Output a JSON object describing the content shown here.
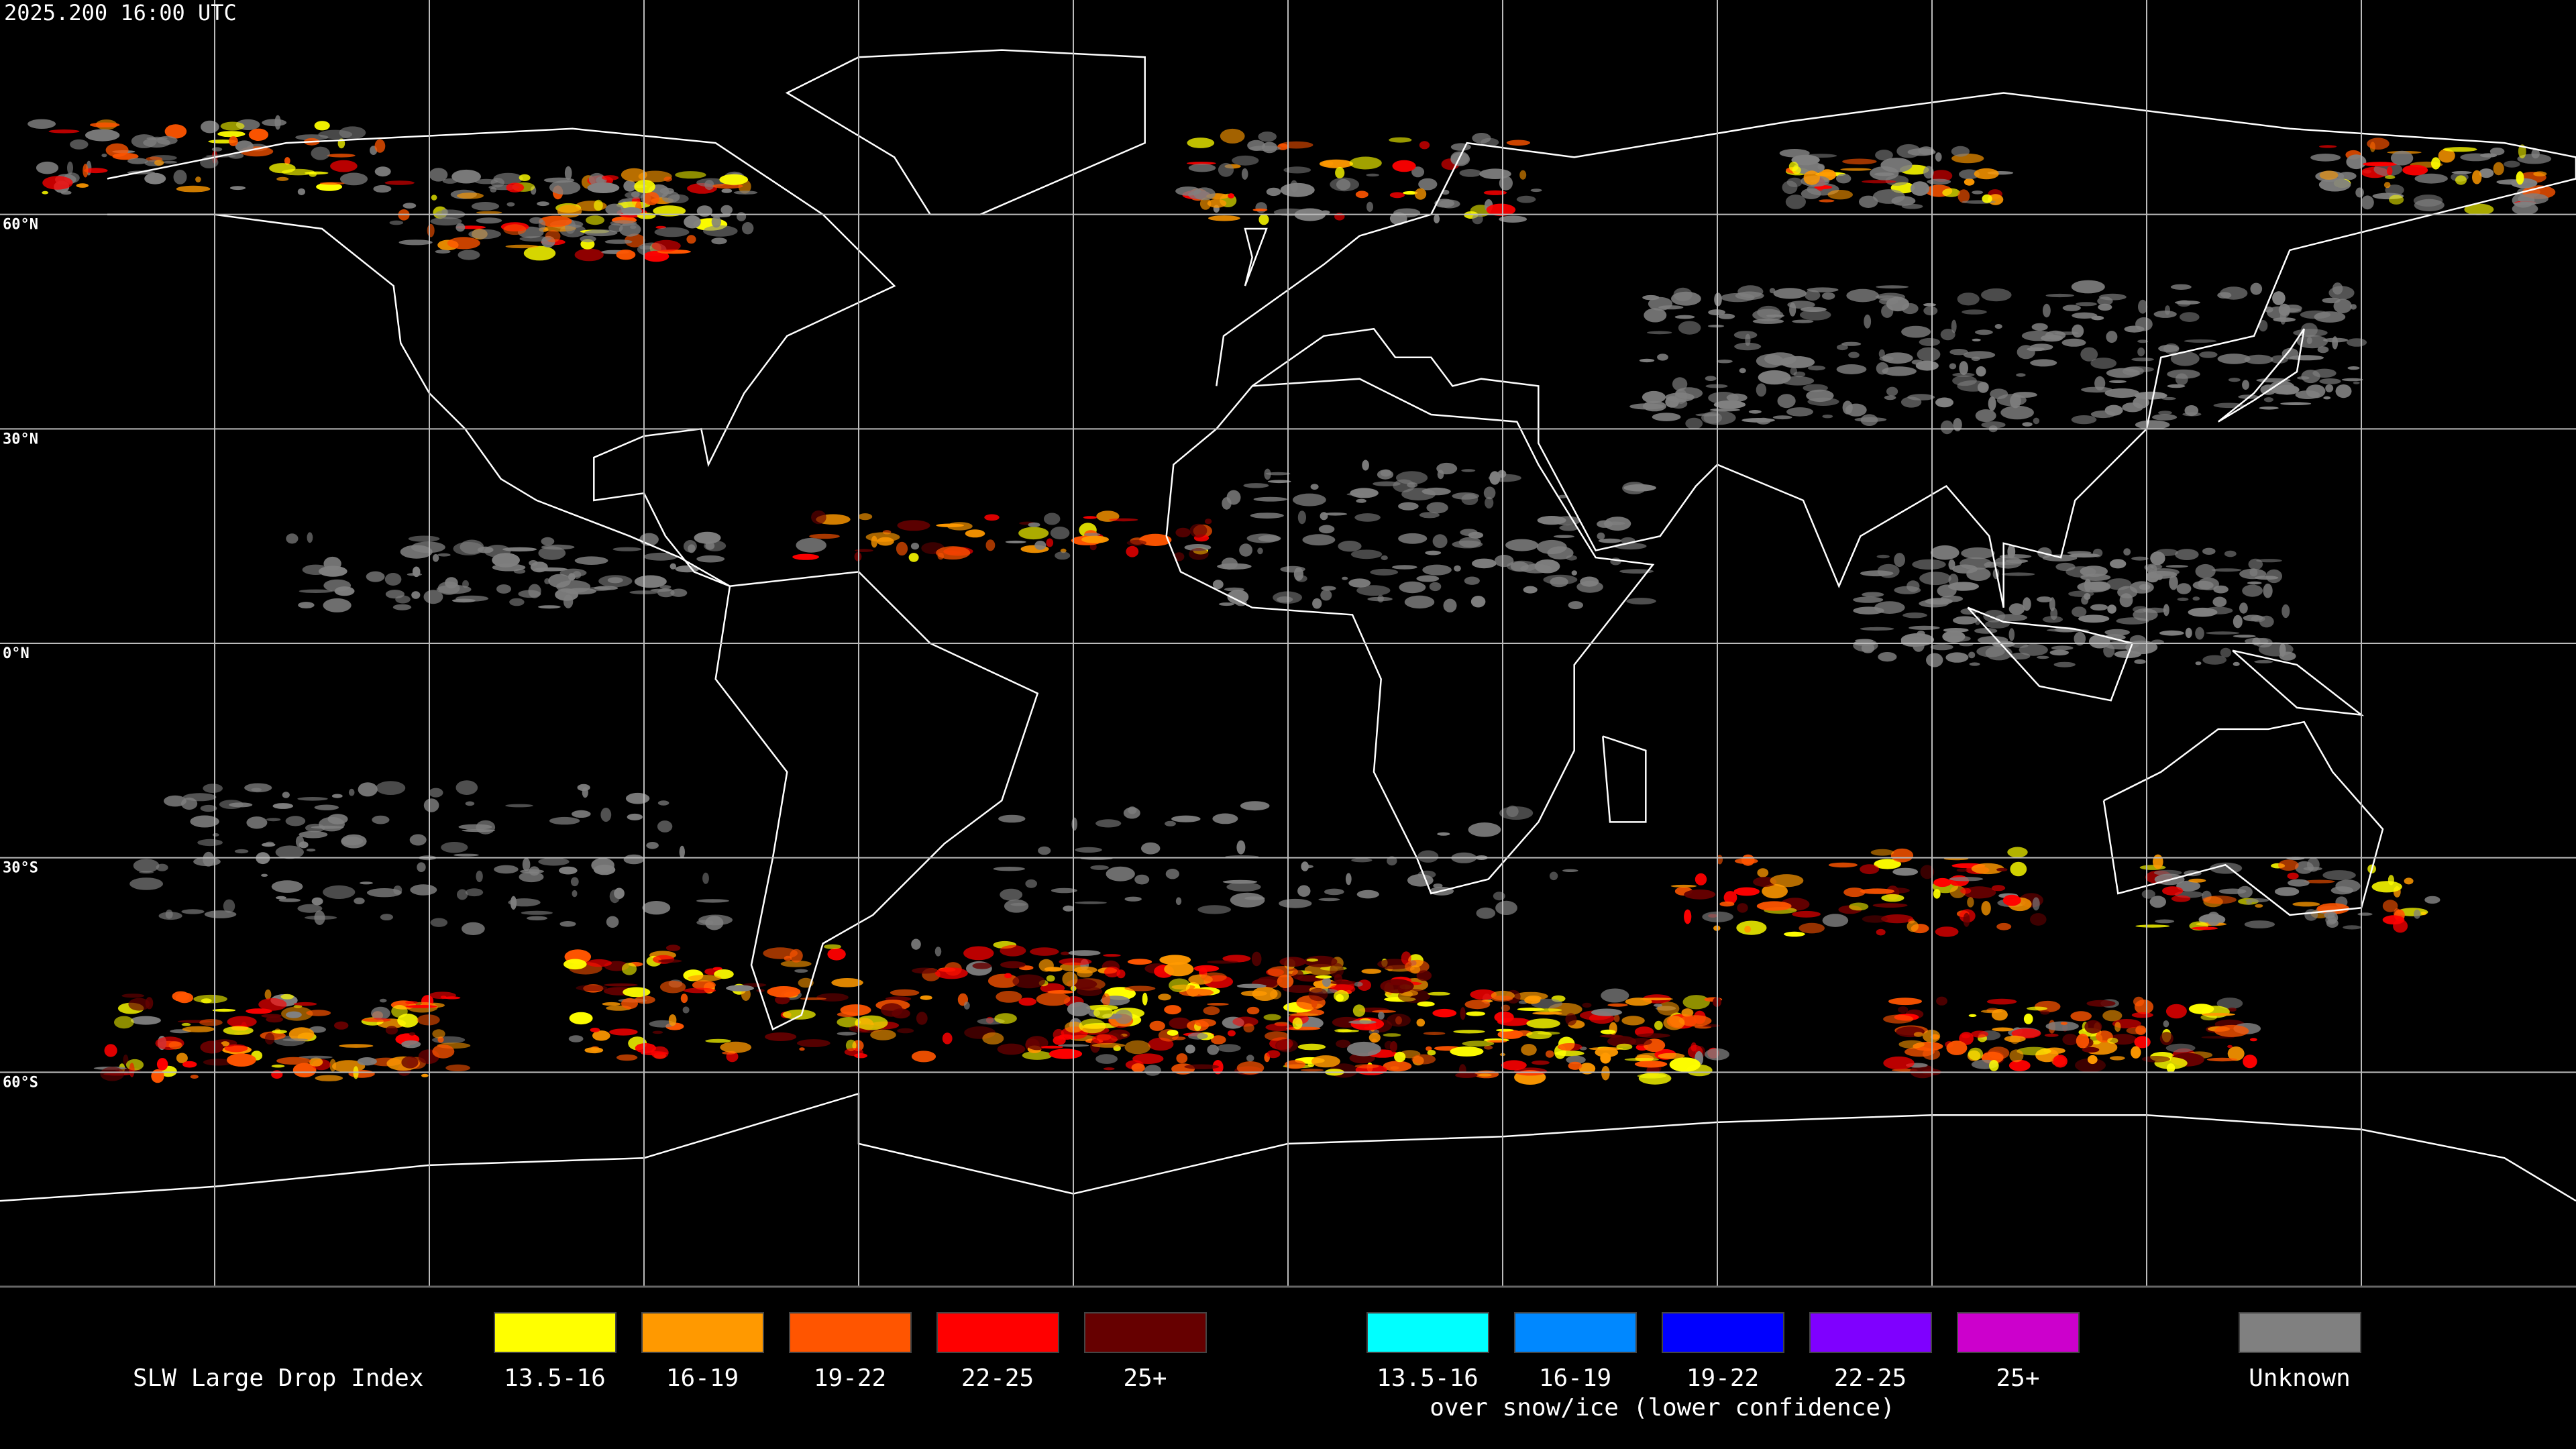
{
  "timestamp": "2025.200 16:00 UTC",
  "map": {
    "latitude_labels": [
      "60°N",
      "30°N",
      "0°N",
      "30°S",
      "60°S"
    ]
  },
  "legend": {
    "title": "SLW Large Drop Index",
    "standard": [
      {
        "label": "13.5-16",
        "color": "#ffff00"
      },
      {
        "label": "16-19",
        "color": "#ff9900"
      },
      {
        "label": "19-22",
        "color": "#ff5500"
      },
      {
        "label": "22-25",
        "color": "#ff0000"
      },
      {
        "label": "25+",
        "color": "#660000"
      }
    ],
    "snow_ice": [
      {
        "label": "13.5-16",
        "color": "#00ffff"
      },
      {
        "label": "16-19",
        "color": "#0088ff"
      },
      {
        "label": "19-22",
        "color": "#0000ff"
      },
      {
        "label": "22-25",
        "color": "#7f00ff"
      },
      {
        "label": "25+",
        "color": "#cc00cc"
      }
    ],
    "snow_ice_caption": "over snow/ice (lower confidence)",
    "unknown": {
      "label": "Unknown",
      "color": "#808080"
    }
  }
}
